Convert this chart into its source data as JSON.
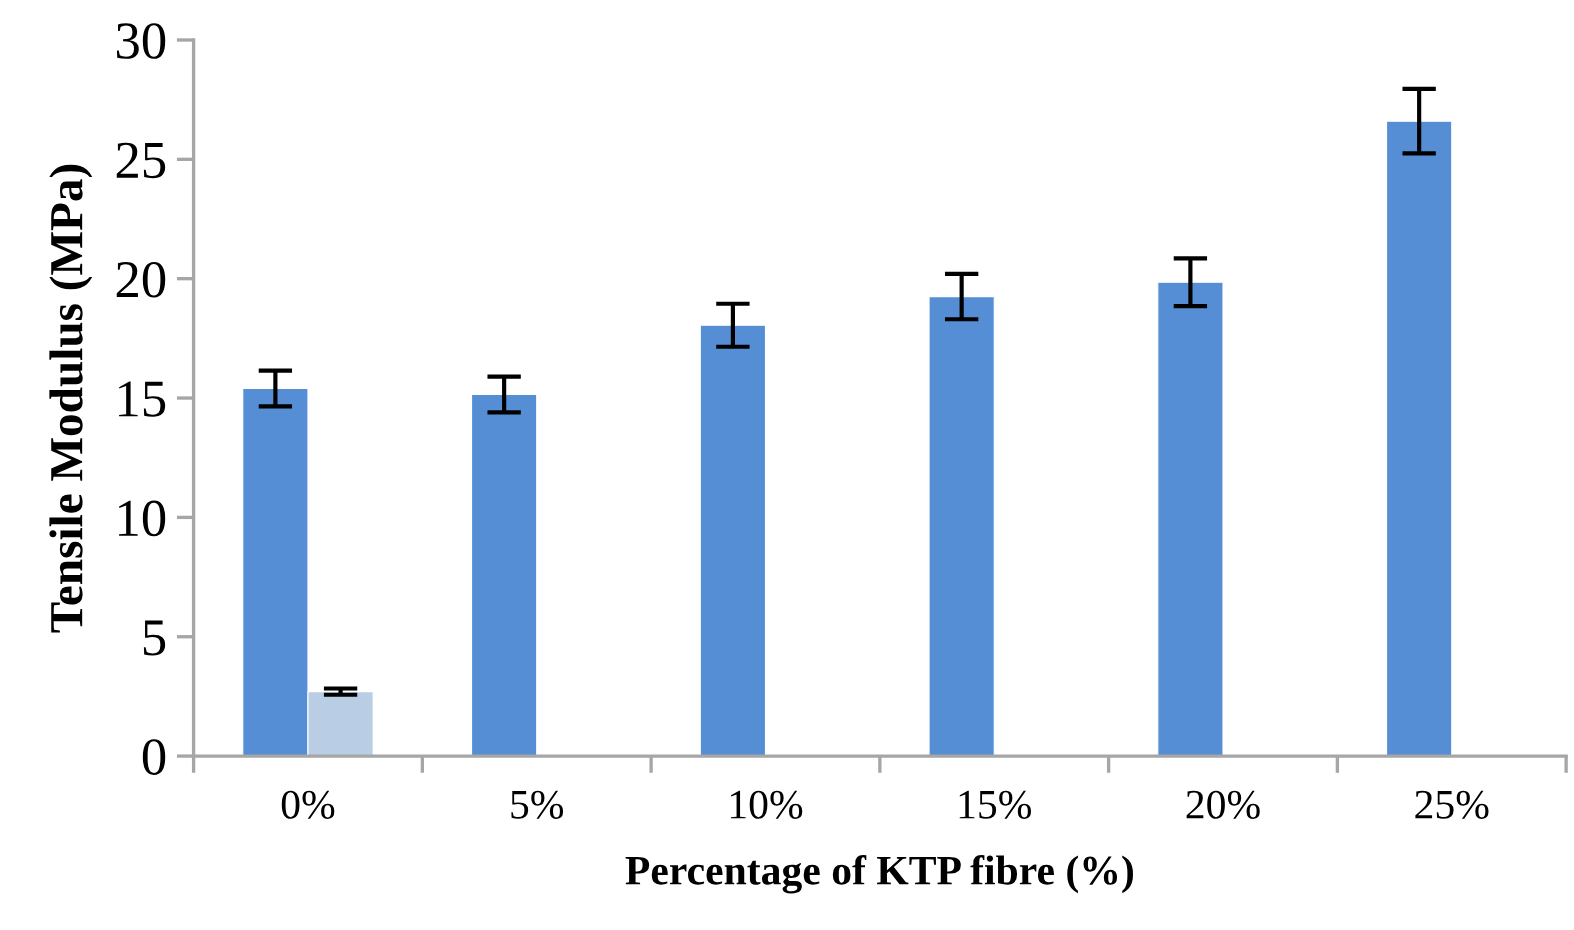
{
  "chart_data": {
    "type": "bar",
    "xlabel": "Percentage of KTP fibre (%)",
    "ylabel": "Tensile Modulus (MPa)",
    "categories": [
      "0%",
      "5%",
      "10%",
      "15%",
      "20%",
      "25%"
    ],
    "series": [
      {
        "color": "#558ed5",
        "values": [
          15.4,
          15.15,
          18.05,
          19.25,
          19.85,
          26.6
        ],
        "errors": [
          0.75,
          0.75,
          0.9,
          0.95,
          1.0,
          1.35
        ]
      },
      {
        "color": "#b9cde5",
        "values": [
          2.7,
          null,
          null,
          null,
          null,
          null
        ],
        "errors": [
          0.13,
          null,
          null,
          null,
          null,
          null
        ]
      }
    ],
    "ylim": [
      0,
      30
    ],
    "yticks": [
      0,
      5,
      10,
      15,
      20,
      25,
      30
    ],
    "grid": false,
    "legend": false
  }
}
